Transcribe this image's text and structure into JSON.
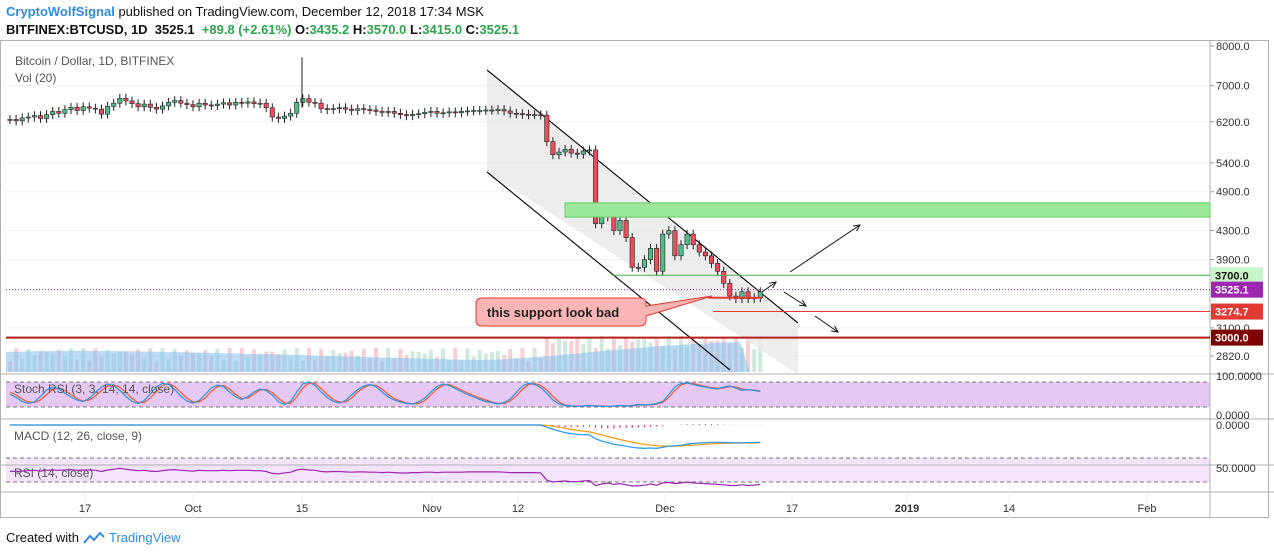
{
  "header": {
    "author": "CryptoWolfSignal",
    "published_text": "published on TradingView.com, December 12, 2018 17:34 MSK",
    "symbol": "BITFINEX:BTCUSD, 1D",
    "last": "3525.1",
    "change": "+89.8 (+2.61%)",
    "o_label": "O:",
    "o_value": "3435.2",
    "h_label": "H:",
    "h_value": "3570.0",
    "l_label": "L:",
    "l_value": "3415.0",
    "c_label": "C:",
    "c_value": "3525.1"
  },
  "footer": {
    "created_with": "Created with",
    "brand": "TradingView"
  },
  "colors": {
    "up": "#53b987",
    "down": "#eb4d5c",
    "channel": "#111111",
    "zone": "#9be89b",
    "stoch_k": "#2196f3",
    "stoch_d": "#ff5722",
    "macd": "#2196f3",
    "signal": "#ff9800",
    "rsi": "#9c27b0",
    "vol": "#8ec3f0",
    "support": "#e53935",
    "level3000": "#b71c1c"
  },
  "chart_data": {
    "type": "candlestick",
    "title": "Bitcoin / Dollar, 1D, BITFINEX",
    "volume_label": "Vol (20)",
    "x_ticks": [
      "17",
      "Oct",
      "15",
      "Nov",
      "12",
      "Dec",
      "17",
      "2019",
      "14",
      "Feb"
    ],
    "y_ticks": [
      8000,
      7000,
      6200,
      5400,
      4900,
      4300,
      3900,
      3100,
      2820
    ],
    "y_tick_labels": [
      "8000.0",
      "7000.0",
      "6200.0",
      "5400.0",
      "4900.0",
      "4300.0",
      "3900.0",
      "3100.0",
      "2820.0"
    ],
    "ylim": [
      2700,
      8200
    ],
    "price_labels": [
      {
        "text": "3700.0",
        "value": 3700,
        "kind": "resistance"
      },
      {
        "text": "3525.1",
        "value": 3525.1,
        "kind": "last"
      },
      {
        "text": "3274.7",
        "value": 3274.7,
        "kind": "support"
      },
      {
        "text": "3000.0",
        "value": 3000,
        "kind": "major"
      }
    ],
    "close_prices": [
      6250,
      6220,
      6280,
      6300,
      6330,
      6270,
      6350,
      6420,
      6380,
      6460,
      6510,
      6440,
      6520,
      6490,
      6470,
      6360,
      6530,
      6600,
      6710,
      6650,
      6590,
      6520,
      6580,
      6510,
      6470,
      6540,
      6620,
      6660,
      6600,
      6570,
      6520,
      6600,
      6560,
      6550,
      6580,
      6610,
      6560,
      6620,
      6600,
      6630,
      6590,
      6600,
      6500,
      6300,
      6270,
      6320,
      6380,
      6620,
      6700,
      6620,
      6600,
      6480,
      6460,
      6480,
      6500,
      6470,
      6440,
      6480,
      6460,
      6450,
      6420,
      6400,
      6420,
      6380,
      6350,
      6330,
      6360,
      6370,
      6400,
      6420,
      6380,
      6390,
      6410,
      6390,
      6420,
      6430,
      6440,
      6440,
      6450,
      6450,
      6460,
      6430,
      6380,
      6370,
      6360,
      6350,
      6350,
      6340,
      5800,
      5550,
      5600,
      5650,
      5580,
      5560,
      5620,
      5640,
      4400,
      4500,
      4650,
      4300,
      4450,
      4200,
      3800,
      3800,
      3900,
      4050,
      3750,
      4250,
      4300,
      3950,
      4100,
      4250,
      4100,
      4000,
      3950,
      3850,
      3750,
      3600,
      3450,
      3420,
      3500,
      3420,
      3430,
      3500
    ],
    "channel_description": "descending channel",
    "zones": [
      {
        "from": 4500,
        "to": 4720
      }
    ],
    "annotation": "this support look bad",
    "lower_panes": [
      {
        "name": "Stoch RSI (3, 3, 14, 14, close)",
        "ticks": [
          "100.0000",
          "0.0000"
        ],
        "ylim": [
          0,
          100
        ]
      },
      {
        "name": "MACD (12, 26, close, 9)",
        "ticks": [
          "0.0000"
        ]
      },
      {
        "name": "RSI (14, close)",
        "ticks": [
          "50.0000"
        ],
        "ylim": [
          0,
          100
        ]
      }
    ],
    "stoch_k": [
      52,
      38,
      22,
      14,
      20,
      42,
      68,
      80,
      72,
      55,
      40,
      28,
      22,
      35,
      58,
      80,
      92,
      86,
      66,
      42,
      22,
      14,
      26,
      52,
      80,
      95,
      90,
      70,
      44,
      24,
      16,
      26,
      50,
      76,
      88,
      82,
      60,
      40,
      30,
      42,
      60,
      72,
      66,
      48,
      22,
      10,
      22,
      60,
      92,
      100,
      86,
      60,
      38,
      22,
      16,
      26,
      48,
      70,
      84,
      90,
      82,
      60,
      40,
      28,
      20,
      14,
      12,
      20,
      36,
      60,
      82,
      92,
      86,
      74,
      62,
      50,
      40,
      30,
      22,
      18,
      12,
      18,
      32,
      58,
      84,
      95,
      90,
      78,
      55,
      28,
      12,
      6,
      4,
      3,
      4,
      6,
      4,
      3,
      3,
      4,
      6,
      4,
      6,
      10,
      8,
      10,
      14,
      22,
      50,
      80,
      94,
      96,
      90,
      84,
      80,
      75,
      72,
      80,
      84,
      76,
      66,
      70,
      66,
      62
    ],
    "stoch_d": [
      60,
      48,
      32,
      20,
      18,
      28,
      50,
      70,
      76,
      66,
      50,
      34,
      24,
      28,
      44,
      66,
      84,
      88,
      80,
      58,
      34,
      18,
      18,
      36,
      62,
      86,
      94,
      82,
      58,
      36,
      20,
      20,
      36,
      62,
      82,
      86,
      72,
      50,
      34,
      36,
      52,
      68,
      70,
      58,
      36,
      16,
      14,
      40,
      76,
      96,
      94,
      74,
      50,
      30,
      20,
      20,
      36,
      60,
      78,
      88,
      86,
      72,
      50,
      34,
      24,
      16,
      12,
      14,
      26,
      48,
      72,
      88,
      90,
      80,
      68,
      56,
      46,
      36,
      28,
      20,
      14,
      14,
      24,
      44,
      70,
      90,
      94,
      86,
      68,
      42,
      20,
      8,
      5,
      4,
      4,
      5,
      5,
      4,
      3,
      3,
      5,
      5,
      5,
      8,
      9,
      9,
      12,
      18,
      38,
      66,
      88,
      96,
      94,
      88,
      82,
      78,
      74,
      76,
      82,
      80,
      72,
      68,
      68,
      64
    ],
    "macd": [
      0,
      0,
      0,
      0,
      0,
      0,
      0,
      0,
      0,
      0,
      0,
      0,
      0,
      0,
      0,
      0,
      0,
      0,
      0,
      0,
      0,
      0,
      0,
      0,
      0,
      0,
      0,
      0,
      0,
      0,
      0,
      0,
      0,
      0,
      0,
      0,
      0,
      0,
      0,
      0,
      0,
      0,
      0,
      0,
      0,
      0,
      0,
      0,
      0,
      0,
      0,
      0,
      0,
      0,
      0,
      0,
      0,
      0,
      0,
      0,
      0,
      0,
      0,
      0,
      0,
      0,
      0,
      0,
      0,
      0,
      0,
      0,
      0,
      0,
      0,
      0,
      0,
      0,
      0,
      0,
      0,
      0,
      0,
      0,
      0,
      0,
      0,
      0,
      -60,
      -120,
      -170,
      -210,
      -240,
      -260,
      -270,
      -275,
      -380,
      -450,
      -490,
      -540,
      -560,
      -590,
      -620,
      -640,
      -650,
      -640,
      -650,
      -620,
      -590,
      -580,
      -560,
      -530,
      -510,
      -500,
      -490,
      -480,
      -480,
      -485,
      -490,
      -495,
      -495,
      -490,
      -485,
      -480
    ],
    "macd_signal": [
      0,
      0,
      0,
      0,
      0,
      0,
      0,
      0,
      0,
      0,
      0,
      0,
      0,
      0,
      0,
      0,
      0,
      0,
      0,
      0,
      0,
      0,
      0,
      0,
      0,
      0,
      0,
      0,
      0,
      0,
      0,
      0,
      0,
      0,
      0,
      0,
      0,
      0,
      0,
      0,
      0,
      0,
      0,
      0,
      0,
      0,
      0,
      0,
      0,
      0,
      0,
      0,
      0,
      0,
      0,
      0,
      0,
      0,
      0,
      0,
      0,
      0,
      0,
      0,
      0,
      0,
      0,
      0,
      0,
      0,
      0,
      0,
      0,
      0,
      0,
      0,
      0,
      0,
      0,
      0,
      0,
      0,
      0,
      0,
      0,
      0,
      0,
      0,
      -12,
      -34,
      -61,
      -91,
      -121,
      -149,
      -173,
      -193,
      -230,
      -274,
      -317,
      -362,
      -402,
      -439,
      -475,
      -508,
      -536,
      -557,
      -576,
      -585,
      -586,
      -585,
      -580,
      -570,
      -558,
      -547,
      -535,
      -524,
      -515,
      -509,
      -505,
      -503,
      -501,
      -499,
      -496,
      -493
    ],
    "rsi": [
      55,
      54,
      55,
      56,
      57,
      55,
      57,
      58,
      57,
      58,
      59,
      57,
      58,
      58,
      57,
      54,
      58,
      60,
      62,
      60,
      58,
      56,
      57,
      55,
      54,
      56,
      58,
      59,
      57,
      56,
      55,
      57,
      56,
      56,
      56,
      57,
      56,
      57,
      57,
      57,
      56,
      56,
      54,
      49,
      48,
      50,
      52,
      58,
      60,
      58,
      57,
      54,
      53,
      54,
      54,
      53,
      52,
      53,
      53,
      52,
      52,
      51,
      52,
      51,
      50,
      50,
      51,
      51,
      52,
      52,
      51,
      52,
      52,
      52,
      52,
      53,
      53,
      53,
      53,
      53,
      53,
      52,
      51,
      51,
      51,
      51,
      51,
      50,
      31,
      26,
      28,
      29,
      27,
      27,
      29,
      30,
      17,
      21,
      24,
      20,
      22,
      19,
      16,
      16,
      18,
      21,
      18,
      24,
      25,
      22,
      24,
      26,
      24,
      23,
      22,
      21,
      20,
      19,
      17,
      17,
      19,
      17,
      18,
      20
    ]
  }
}
